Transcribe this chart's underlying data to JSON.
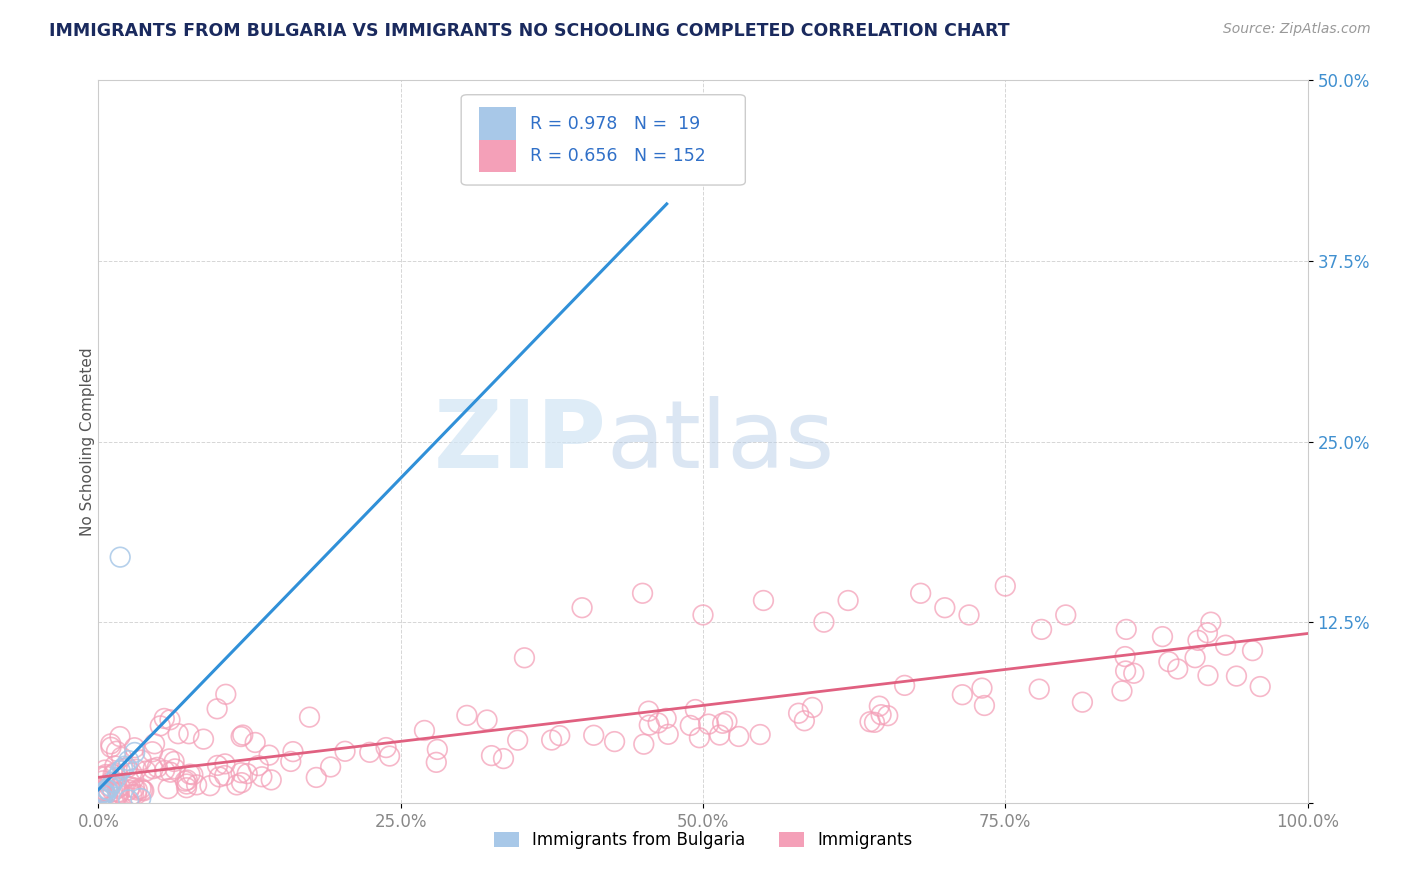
{
  "title": "IMMIGRANTS FROM BULGARIA VS IMMIGRANTS NO SCHOOLING COMPLETED CORRELATION CHART",
  "source": "Source: ZipAtlas.com",
  "ylabel": "No Schooling Completed",
  "series1_label": "Immigrants from Bulgaria",
  "series2_label": "Immigrants",
  "series1_color": "#a8c8e8",
  "series2_color": "#f4a0b8",
  "series1_line_color": "#3090d8",
  "series2_line_color": "#e06080",
  "R1": 0.978,
  "N1": 19,
  "R2": 0.656,
  "N2": 152,
  "watermark_zip": "ZIP",
  "watermark_atlas": "atlas",
  "xlim": [
    0.0,
    1.0
  ],
  "ylim": [
    0.0,
    0.5
  ],
  "xticks": [
    0.0,
    0.25,
    0.5,
    0.75,
    1.0
  ],
  "yticks": [
    0.0,
    0.125,
    0.25,
    0.375,
    0.5
  ],
  "xticklabels": [
    "0.0%",
    "25.0%",
    "50.0%",
    "75.0%",
    "100.0%"
  ],
  "yticklabels": [
    "",
    "12.5%",
    "25.0%",
    "37.5%",
    "50.0%"
  ],
  "title_color": "#1a2a5e",
  "legend_text_color": "#3070c8",
  "tick_color_y": "#4090d0",
  "tick_color_x": "#888888",
  "axis_color": "#cccccc",
  "grid_color": "#bbbbbb",
  "background_color": "#ffffff"
}
